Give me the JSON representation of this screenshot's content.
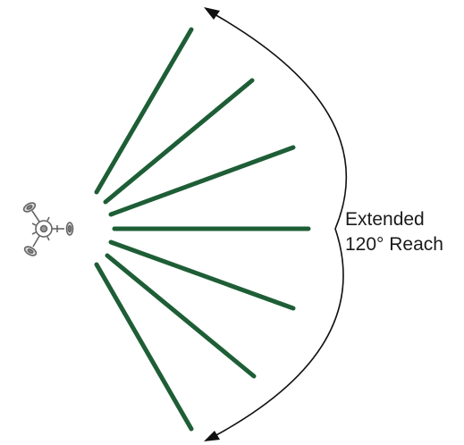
{
  "label": {
    "line1": "Extended",
    "line2": "120° Reach"
  },
  "colors": {
    "beam": "#1e5e36",
    "arc": "#111111",
    "device": "#666666",
    "text": "#1a1a1a"
  },
  "icons": {
    "device": "tripod-robot-icon"
  }
}
